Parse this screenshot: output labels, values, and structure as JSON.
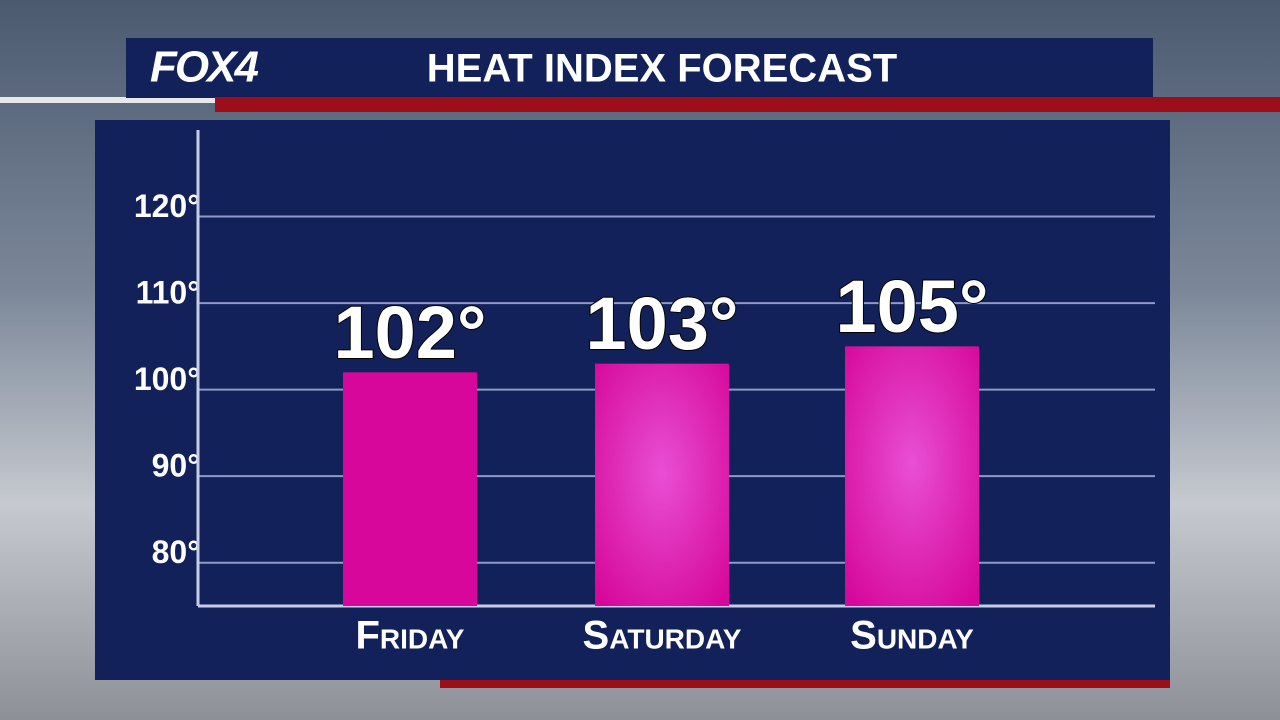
{
  "logo": "FOX4",
  "chart_data": {
    "type": "bar",
    "title": "HEAT INDEX FORECAST",
    "categories": [
      "Friday",
      "Saturday",
      "Sunday"
    ],
    "values": [
      102,
      103,
      105
    ],
    "value_labels": [
      "102°",
      "103°",
      "105°"
    ],
    "color": "#d6079a",
    "ylim": [
      75,
      130
    ],
    "yticks": [
      {
        "value": 80,
        "label": "80°"
      },
      {
        "value": 90,
        "label": "90°"
      },
      {
        "value": 100,
        "label": "100°"
      },
      {
        "value": 110,
        "label": "110°"
      },
      {
        "value": 120,
        "label": "120°"
      }
    ],
    "grid": true
  }
}
